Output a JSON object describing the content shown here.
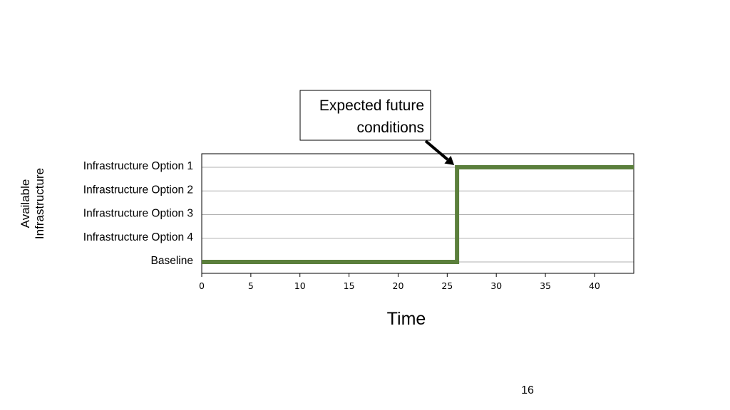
{
  "chart_data": {
    "type": "line",
    "title": "",
    "xlabel": "Time",
    "ylabel": "Available\nInfrastructure",
    "xlim": [
      0,
      44
    ],
    "xticks": [
      0,
      5,
      10,
      15,
      20,
      25,
      30,
      35,
      40
    ],
    "categories": [
      "Infrastructure Option 1",
      "Infrastructure Option 2",
      "Infrastructure Option 3",
      "Infrastructure Option 4",
      "Baseline"
    ],
    "grid": true,
    "series": [
      {
        "name": "",
        "color": "#5b7f3c",
        "step": "post",
        "x": [
          0,
          26,
          44
        ],
        "y": [
          "Baseline",
          "Infrastructure Option 1",
          "Infrastructure Option 1"
        ]
      }
    ],
    "annotation": {
      "text": [
        "Expected future",
        "conditions"
      ],
      "target": {
        "x": 26,
        "y": "Infrastructure Option 1"
      }
    }
  },
  "page_number": "16"
}
